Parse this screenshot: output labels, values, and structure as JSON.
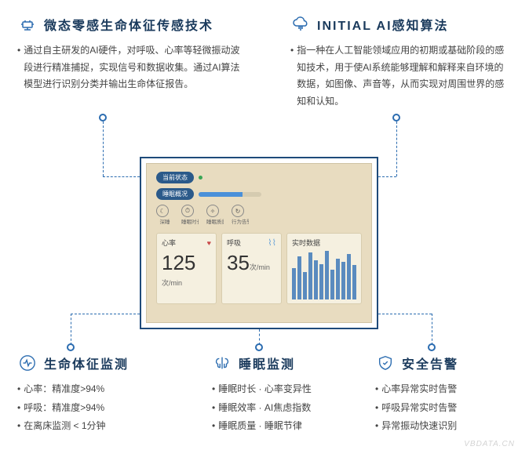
{
  "colors": {
    "primary": "#2b6cb0",
    "title": "#1a3a5c",
    "text": "#444444",
    "device_bg": "#e8dcc0",
    "device_border": "#1e4a7a",
    "card_bg": "#f5f0e0",
    "bar_color": "#5a8bbf"
  },
  "sections": {
    "top_left": {
      "icon": "sensor-chip",
      "title": "微态零感生命体征传感技术",
      "paragraph": "通过自主研发的AI硬件，对呼吸、心率等轻微振动波段进行精准捕捉，实现信号和数据收集。通过AI算法模型进行识别分类并输出生命体征报告。"
    },
    "top_right": {
      "icon": "ai-cloud",
      "title": "INITIAL AI感知算法",
      "paragraph": "指一种在人工智能领域应用的初期或基础阶段的感知技术，用于使AI系统能够理解和解释来自环境的数据，如图像、声音等，从而实现对周围世界的感知和认知。"
    },
    "bottom_left": {
      "icon": "heartbeat",
      "title": "生命体征监测",
      "bullets": [
        "心率：精准度>94%",
        "呼吸：精准度>94%",
        "在离床监测 < 1分钟"
      ]
    },
    "bottom_mid": {
      "icon": "sleep-brain",
      "title": "睡眠监测",
      "bullets": [
        "睡眠时长 · 心率变异性",
        "睡眠效率 · AI焦虑指数",
        "睡眠质量 · 睡眠节律"
      ]
    },
    "bottom_right": {
      "icon": "shield",
      "title": "安全告警",
      "bullets": [
        "心率异常实时告警",
        "呼吸异常实时告警",
        "异常振动快速识别"
      ]
    }
  },
  "device": {
    "status_label": "当前状态",
    "status_light_color": "#3aa655",
    "sleep_label": "睡眠概况",
    "sleep_bar_fill": 0.7,
    "sleep_bar_color": "#4a90d9",
    "mini_icons": [
      {
        "glyph": "☾",
        "label": "深睡"
      },
      {
        "glyph": "⏱",
        "label": "睡眠时长"
      },
      {
        "glyph": "✧",
        "label": "睡眠质量"
      },
      {
        "glyph": "↻",
        "label": "行为告警统计"
      }
    ],
    "cards": {
      "heart": {
        "label": "心率",
        "icon": "heart",
        "icon_color": "#c94a4a",
        "value": "125",
        "unit": "次/min"
      },
      "breath": {
        "label": "呼吸",
        "icon": "lungs",
        "icon_color": "#6aa3d8",
        "value": "35",
        "unit": "次/min"
      },
      "realtime": {
        "label": "实时数据",
        "bars": [
          40,
          55,
          35,
          60,
          50,
          45,
          62,
          38,
          52,
          48,
          58,
          44
        ]
      }
    }
  },
  "watermark": "VBDATA.CN"
}
